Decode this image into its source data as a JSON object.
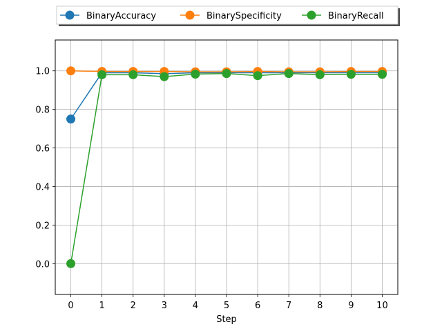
{
  "chart_data": {
    "type": "line",
    "title": "",
    "xlabel": "Step",
    "ylabel": "",
    "x": [
      0,
      1,
      2,
      3,
      4,
      5,
      6,
      7,
      8,
      9,
      10
    ],
    "xlim": [
      -0.5,
      10.5
    ],
    "ylim": [
      -0.16,
      1.16
    ],
    "xticks": [
      "0",
      "1",
      "2",
      "3",
      "4",
      "5",
      "6",
      "7",
      "8",
      "9",
      "10"
    ],
    "yticks": [
      "0.0",
      "0.2",
      "0.4",
      "0.6",
      "0.8",
      "1.0"
    ],
    "grid": true,
    "legend_position": "top-center",
    "series": [
      {
        "name": "BinaryAccuracy",
        "color": "#1f77b4",
        "values": [
          0.75,
          0.99,
          0.99,
          0.985,
          0.99,
          0.99,
          0.99,
          0.99,
          0.99,
          0.99,
          0.99
        ]
      },
      {
        "name": "BinarySpecificity",
        "color": "#ff7f0e",
        "values": [
          1.0,
          0.997,
          0.997,
          0.997,
          0.995,
          0.995,
          0.997,
          0.995,
          0.995,
          0.997,
          0.997
        ]
      },
      {
        "name": "BinaryRecall",
        "color": "#2ca02c",
        "values": [
          0.0,
          0.98,
          0.98,
          0.97,
          0.983,
          0.986,
          0.975,
          0.986,
          0.98,
          0.982,
          0.982
        ]
      }
    ]
  }
}
